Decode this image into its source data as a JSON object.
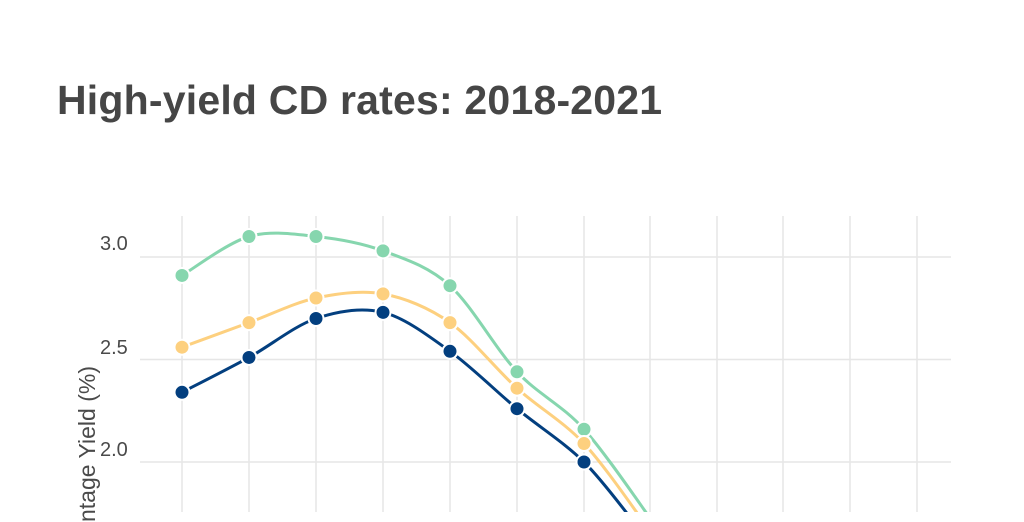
{
  "chart_data": {
    "type": "line",
    "title": "High-yield CD rates: 2018-2021",
    "xlabel": "",
    "ylabel": "Annual Percentage Yield (%)",
    "ylabel_visible": "ntage Yield (%)",
    "yticks": [
      "2.0",
      "2.5",
      "3.0"
    ],
    "ylim_visible": [
      1.75,
      3.2
    ],
    "grid": true,
    "legend": null,
    "x_index": [
      1,
      2,
      3,
      4,
      5,
      6,
      7,
      8,
      9,
      10,
      11,
      12
    ],
    "series": [
      {
        "name": "series-green",
        "color": "#86d6ae",
        "values": [
          2.91,
          3.1,
          3.1,
          3.03,
          2.86,
          2.44,
          2.16
        ]
      },
      {
        "name": "series-yellow",
        "color": "#fdd07f",
        "values": [
          2.56,
          2.68,
          2.8,
          2.82,
          2.68,
          2.36,
          2.09
        ]
      },
      {
        "name": "series-blue",
        "color": "#033f7f",
        "values": [
          2.34,
          2.51,
          2.7,
          2.73,
          2.54,
          2.26,
          2.0
        ]
      }
    ],
    "note": "Series continue below visible crop after the 7th point."
  },
  "header": {
    "title": "High-yield CD rates: 2018-2021"
  },
  "axis": {
    "ylabel": "ntage Yield (%)",
    "ticks": [
      "3.0",
      "2.5",
      "2.0"
    ]
  }
}
